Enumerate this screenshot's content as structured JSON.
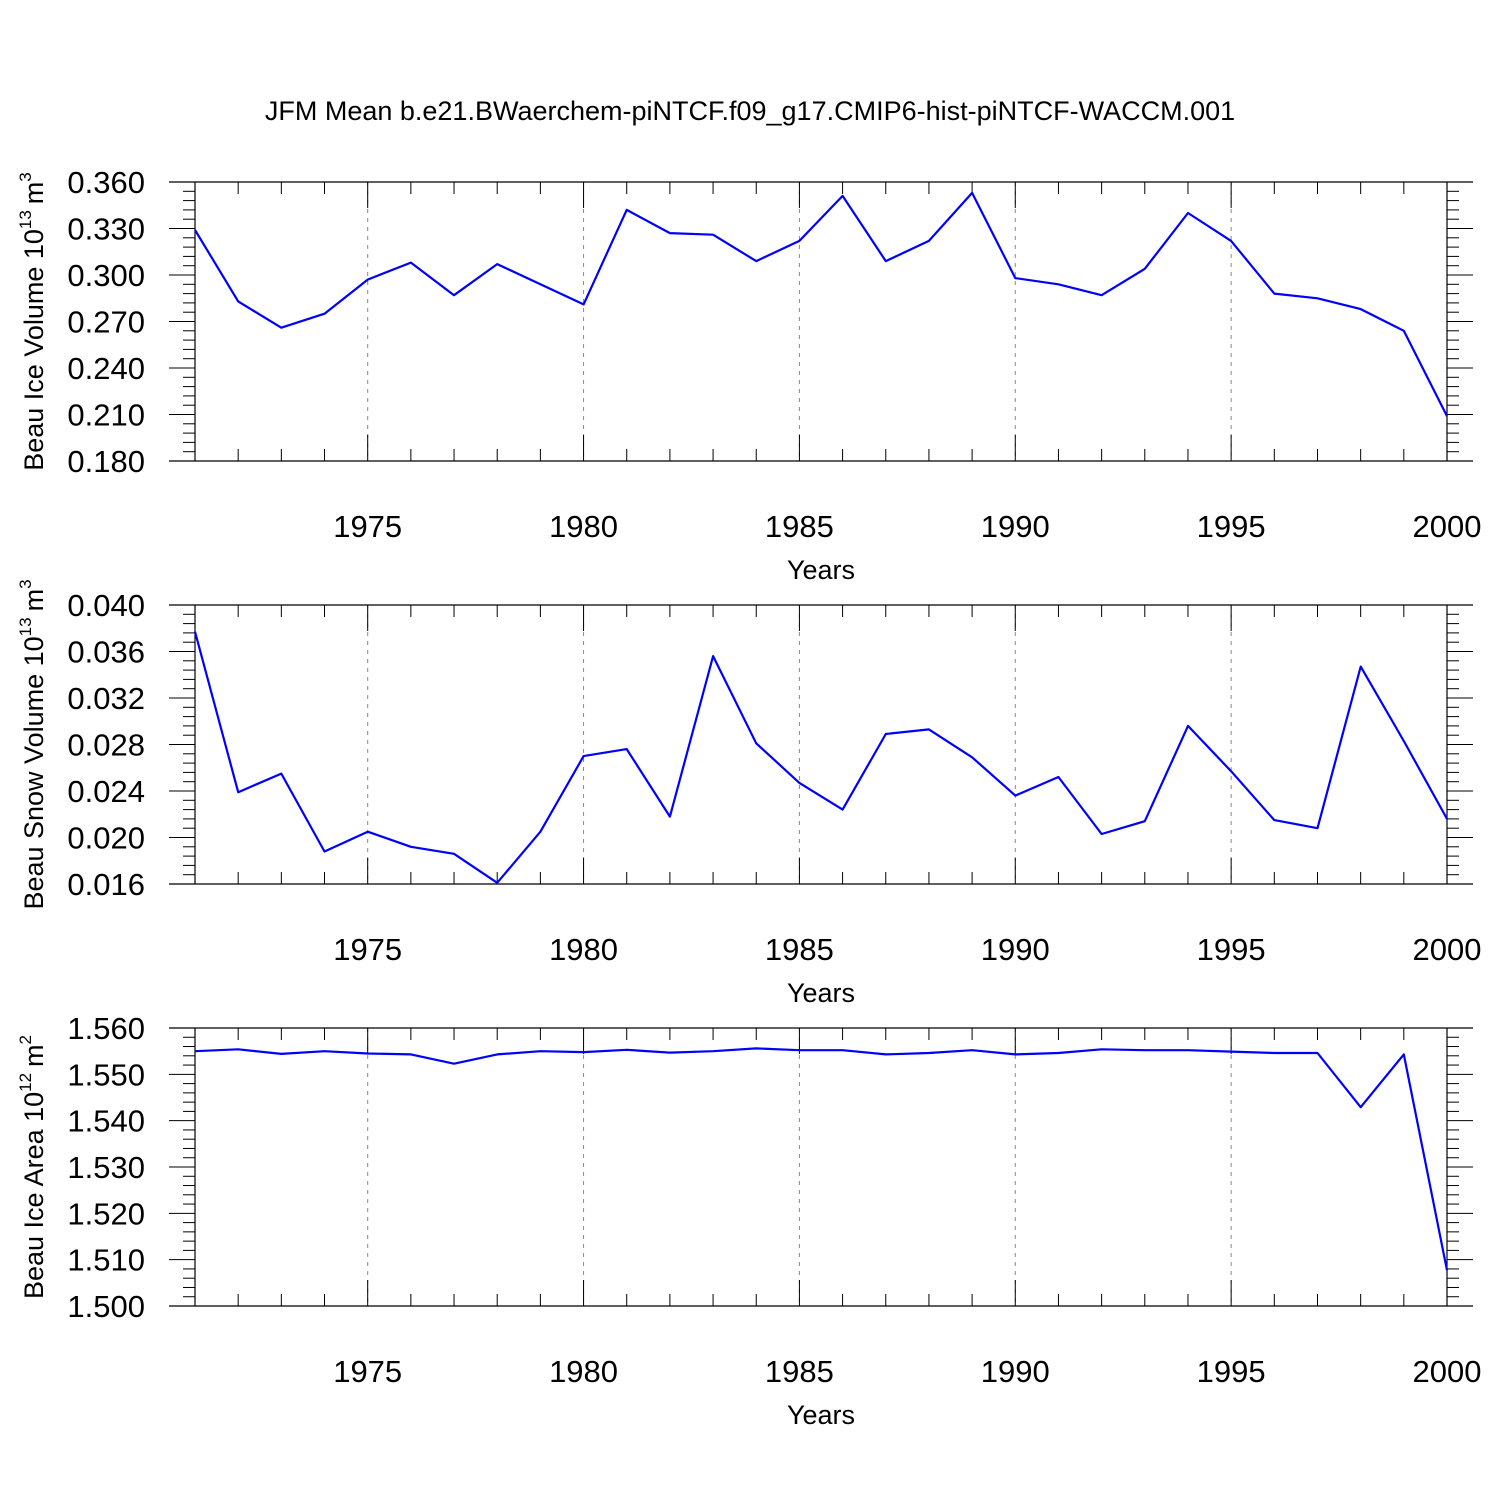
{
  "title": "JFM Mean b.e21.BWaerchem-piNTCF.f09_g17.CMIP6-hist-piNTCF-WACCM.001",
  "colors": {
    "line": "#0000ff",
    "grid": "#8a8a8a",
    "axis": "#000000"
  },
  "chart_data": [
    {
      "type": "line",
      "ylabel_main": "Beau Ice Volume 10",
      "ylabel_exp": "13",
      "ylabel_unit": "m",
      "ylabel_unit_exp": "3",
      "xlabel": "Years",
      "xlim": [
        1971,
        2000
      ],
      "ylim": [
        0.18,
        0.36
      ],
      "yticks": [
        0.18,
        0.21,
        0.24,
        0.27,
        0.3,
        0.33,
        0.36
      ],
      "ytick_labels": [
        "0.180",
        "0.210",
        "0.240",
        "0.270",
        "0.300",
        "0.330",
        "0.360"
      ],
      "xticks": [
        1975,
        1980,
        1985,
        1990,
        1995,
        2000
      ],
      "xtick_labels": [
        "1975",
        "1980",
        "1985",
        "1990",
        "1995",
        "2000"
      ],
      "grid_x": [
        1975,
        1980,
        1985,
        1990,
        1995
      ],
      "x": [
        1971,
        1972,
        1973,
        1974,
        1975,
        1976,
        1977,
        1978,
        1979,
        1980,
        1981,
        1982,
        1983,
        1984,
        1985,
        1986,
        1987,
        1988,
        1989,
        1990,
        1991,
        1992,
        1993,
        1994,
        1995,
        1996,
        1997,
        1998,
        1999,
        2000
      ],
      "values": [
        0.329,
        0.283,
        0.266,
        0.275,
        0.297,
        0.308,
        0.287,
        0.307,
        0.294,
        0.281,
        0.342,
        0.327,
        0.326,
        0.309,
        0.322,
        0.351,
        0.309,
        0.322,
        0.353,
        0.298,
        0.294,
        0.287,
        0.304,
        0.34,
        0.322,
        0.288,
        0.285,
        0.278,
        0.264,
        0.209
      ]
    },
    {
      "type": "line",
      "ylabel_main": "Beau Snow Volume 10",
      "ylabel_exp": "13",
      "ylabel_unit": "m",
      "ylabel_unit_exp": "3",
      "xlabel": "Years",
      "xlim": [
        1971,
        2000
      ],
      "ylim": [
        0.016,
        0.04
      ],
      "yticks": [
        0.016,
        0.02,
        0.024,
        0.028,
        0.032,
        0.036,
        0.04
      ],
      "ytick_labels": [
        "0.016",
        "0.020",
        "0.024",
        "0.028",
        "0.032",
        "0.036",
        "0.040"
      ],
      "xticks": [
        1975,
        1980,
        1985,
        1990,
        1995,
        2000
      ],
      "xtick_labels": [
        "1975",
        "1980",
        "1985",
        "1990",
        "1995",
        "2000"
      ],
      "grid_x": [
        1975,
        1980,
        1985,
        1990,
        1995
      ],
      "x": [
        1971,
        1972,
        1973,
        1974,
        1975,
        1976,
        1977,
        1978,
        1979,
        1980,
        1981,
        1982,
        1983,
        1984,
        1985,
        1986,
        1987,
        1988,
        1989,
        1990,
        1991,
        1992,
        1993,
        1994,
        1995,
        1996,
        1997,
        1998,
        1999,
        2000
      ],
      "values": [
        0.0377,
        0.0239,
        0.0255,
        0.0188,
        0.0205,
        0.0192,
        0.0186,
        0.0161,
        0.0205,
        0.027,
        0.0276,
        0.0218,
        0.0356,
        0.0281,
        0.0247,
        0.0224,
        0.0289,
        0.0293,
        0.0269,
        0.0236,
        0.0252,
        0.0203,
        0.0214,
        0.0296,
        0.0257,
        0.0215,
        0.0208,
        0.0347,
        0.0283,
        0.0216
      ]
    },
    {
      "type": "line",
      "ylabel_main": "Beau Ice Area 10",
      "ylabel_exp": "12",
      "ylabel_unit": "m",
      "ylabel_unit_exp": "2",
      "xlabel": "Years",
      "xlim": [
        1971,
        2000
      ],
      "ylim": [
        1.5,
        1.56
      ],
      "yticks": [
        1.5,
        1.51,
        1.52,
        1.53,
        1.54,
        1.55,
        1.56
      ],
      "ytick_labels": [
        "1.500",
        "1.510",
        "1.520",
        "1.530",
        "1.540",
        "1.550",
        "1.560"
      ],
      "xticks": [
        1975,
        1980,
        1985,
        1990,
        1995,
        2000
      ],
      "xtick_labels": [
        "1975",
        "1980",
        "1985",
        "1990",
        "1995",
        "2000"
      ],
      "grid_x": [
        1975,
        1980,
        1985,
        1990,
        1995
      ],
      "x": [
        1971,
        1972,
        1973,
        1974,
        1975,
        1976,
        1977,
        1978,
        1979,
        1980,
        1981,
        1982,
        1983,
        1984,
        1985,
        1986,
        1987,
        1988,
        1989,
        1990,
        1991,
        1992,
        1993,
        1994,
        1995,
        1996,
        1997,
        1998,
        1999,
        2000
      ],
      "values": [
        1.555,
        1.5554,
        1.5544,
        1.555,
        1.5545,
        1.5543,
        1.5523,
        1.5543,
        1.555,
        1.5548,
        1.5553,
        1.5547,
        1.555,
        1.5556,
        1.5552,
        1.5552,
        1.5543,
        1.5546,
        1.5552,
        1.5543,
        1.5546,
        1.5554,
        1.5552,
        1.5552,
        1.5549,
        1.5546,
        1.5546,
        1.5429,
        1.5543,
        1.5077
      ]
    }
  ]
}
